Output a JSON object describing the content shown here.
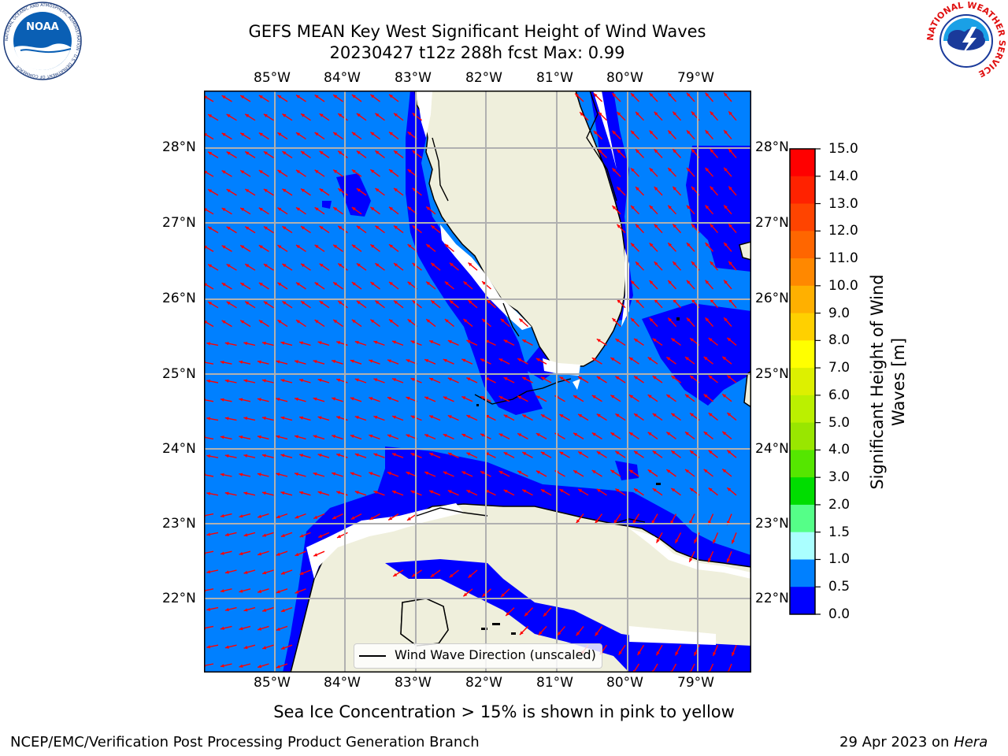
{
  "title": {
    "line1": "GEFS MEAN Key West Significant Height of Wind Waves",
    "line2": "20230427 t12z 288h fcst   Max: 0.99"
  },
  "map": {
    "lon_labels": [
      "85°W",
      "84°W",
      "83°W",
      "82°W",
      "81°W",
      "80°W",
      "79°W"
    ],
    "lat_labels": [
      "28°N",
      "27°N",
      "26°N",
      "25°N",
      "24°N",
      "23°N",
      "22°N"
    ],
    "legend_label": "Wind Wave Direction (unscaled)",
    "colors": {
      "ocean_low": "#0080ff",
      "ocean_very_low": "#0000ff",
      "land": "#efefdc",
      "arrow": "#ff0000",
      "grid": "#b0b0b0"
    }
  },
  "colorbar": {
    "label_line1": "Significant Height of Wind",
    "label_line2": "Waves [m]",
    "ticks": [
      "15.0",
      "14.0",
      "13.0",
      "12.0",
      "11.0",
      "10.0",
      "9.0",
      "8.0",
      "7.0",
      "6.0",
      "5.0",
      "4.0",
      "3.0",
      "2.0",
      "1.5",
      "1.0",
      "0.5",
      "0.0"
    ],
    "colors_top_to_bottom": [
      "#ff0000",
      "#ff2200",
      "#ff4400",
      "#ff6600",
      "#ff8800",
      "#ffb000",
      "#ffd000",
      "#ffff00",
      "#ddf000",
      "#bbf000",
      "#99e600",
      "#55e600",
      "#00dd00",
      "#55ff88",
      "#aaffff",
      "#55ffff",
      "#00ffff",
      "#0080ff",
      "#0000ff"
    ]
  },
  "note": "Sea Ice Concentration > 15% is shown in pink to yellow",
  "footer": {
    "left": "NCEP/EMC/Verification Post Processing Product Generation Branch",
    "date": "29 Apr 2023 on",
    "host": "Hera"
  },
  "logos": {
    "noaa_text": "NOAA",
    "noaa_ring": "NATIONAL OCEANIC AND ATMOSPHERIC ADMINISTRATION · U.S. DEPARTMENT OF COMMERCE",
    "nws_ring": "NATIONAL WEATHER SERVICE"
  }
}
